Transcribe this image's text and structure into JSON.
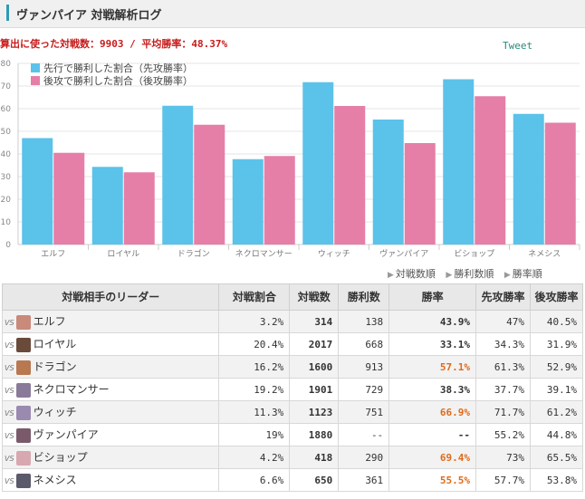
{
  "header": {
    "title": "ヴァンパイア 対戦解析ログ"
  },
  "summary": "算出に使った対戦数：9903 / 平均勝率：48.37%",
  "tweet_label": "Tweet",
  "sort_links": [
    "対戦数順",
    "勝利数順",
    "勝率順"
  ],
  "colors": {
    "first": "#5bc2ea",
    "second": "#e57fa8",
    "highlight": "#e06a1a",
    "accent": "#2e9bb5"
  },
  "chart_data": {
    "type": "bar",
    "categories": [
      "エルフ",
      "ロイヤル",
      "ドラゴン",
      "ネクロマンサー",
      "ウィッチ",
      "ヴァンパイア",
      "ビショップ",
      "ネメシス"
    ],
    "series": [
      {
        "name": "先行で勝利した割合（先攻勝率）",
        "values": [
          47,
          34.3,
          61.3,
          37.7,
          71.7,
          55.2,
          73,
          57.7
        ]
      },
      {
        "name": "後攻で勝利した割合（後攻勝率）",
        "values": [
          40.5,
          31.9,
          52.9,
          39.1,
          61.2,
          44.8,
          65.5,
          53.8
        ]
      }
    ],
    "yticks": [
      "80",
      "70",
      "60",
      "50",
      "40",
      "30",
      "20",
      "10",
      "0"
    ],
    "ylim": [
      0,
      80
    ],
    "grid": true,
    "legend_position": "top-left"
  },
  "table": {
    "headers": [
      "対戦相手のリーダー",
      "対戦割合",
      "対戦数",
      "勝利数",
      "勝率",
      "先攻勝率",
      "後攻勝率"
    ],
    "vs_label": "VS",
    "rows": [
      {
        "leader": "エルフ",
        "ratio": "3.2%",
        "games": "314",
        "wins": "138",
        "winrate": "43.9%",
        "first": "47%",
        "second": "40.5%",
        "icon": "elf-icon",
        "icon_color": "#c98a7a",
        "hi": false
      },
      {
        "leader": "ロイヤル",
        "ratio": "20.4%",
        "games": "2017",
        "wins": "668",
        "winrate": "33.1%",
        "first": "34.3%",
        "second": "31.9%",
        "icon": "royal-icon",
        "icon_color": "#6a4a3a",
        "hi": false
      },
      {
        "leader": "ドラゴン",
        "ratio": "16.2%",
        "games": "1600",
        "wins": "913",
        "winrate": "57.1%",
        "first": "61.3%",
        "second": "52.9%",
        "icon": "dragon-icon",
        "icon_color": "#b87850",
        "hi": true
      },
      {
        "leader": "ネクロマンサー",
        "ratio": "19.2%",
        "games": "1901",
        "wins": "729",
        "winrate": "38.3%",
        "first": "37.7%",
        "second": "39.1%",
        "icon": "necromancer-icon",
        "icon_color": "#8a7a9a",
        "hi": false
      },
      {
        "leader": "ウィッチ",
        "ratio": "11.3%",
        "games": "1123",
        "wins": "751",
        "winrate": "66.9%",
        "first": "71.7%",
        "second": "61.2%",
        "icon": "witch-icon",
        "icon_color": "#9a8ab0",
        "hi": true
      },
      {
        "leader": "ヴァンパイア",
        "ratio": "19%",
        "games": "1880",
        "wins": "--",
        "winrate": "--",
        "first": "55.2%",
        "second": "44.8%",
        "icon": "vampire-icon",
        "icon_color": "#7a5a6a",
        "hi": false
      },
      {
        "leader": "ビショップ",
        "ratio": "4.2%",
        "games": "418",
        "wins": "290",
        "winrate": "69.4%",
        "first": "73%",
        "second": "65.5%",
        "icon": "bishop-icon",
        "icon_color": "#d8a8b0",
        "hi": true
      },
      {
        "leader": "ネメシス",
        "ratio": "6.6%",
        "games": "650",
        "wins": "361",
        "winrate": "55.5%",
        "first": "57.7%",
        "second": "53.8%",
        "icon": "nemesis-icon",
        "icon_color": "#5a5a6a",
        "hi": true
      }
    ]
  }
}
